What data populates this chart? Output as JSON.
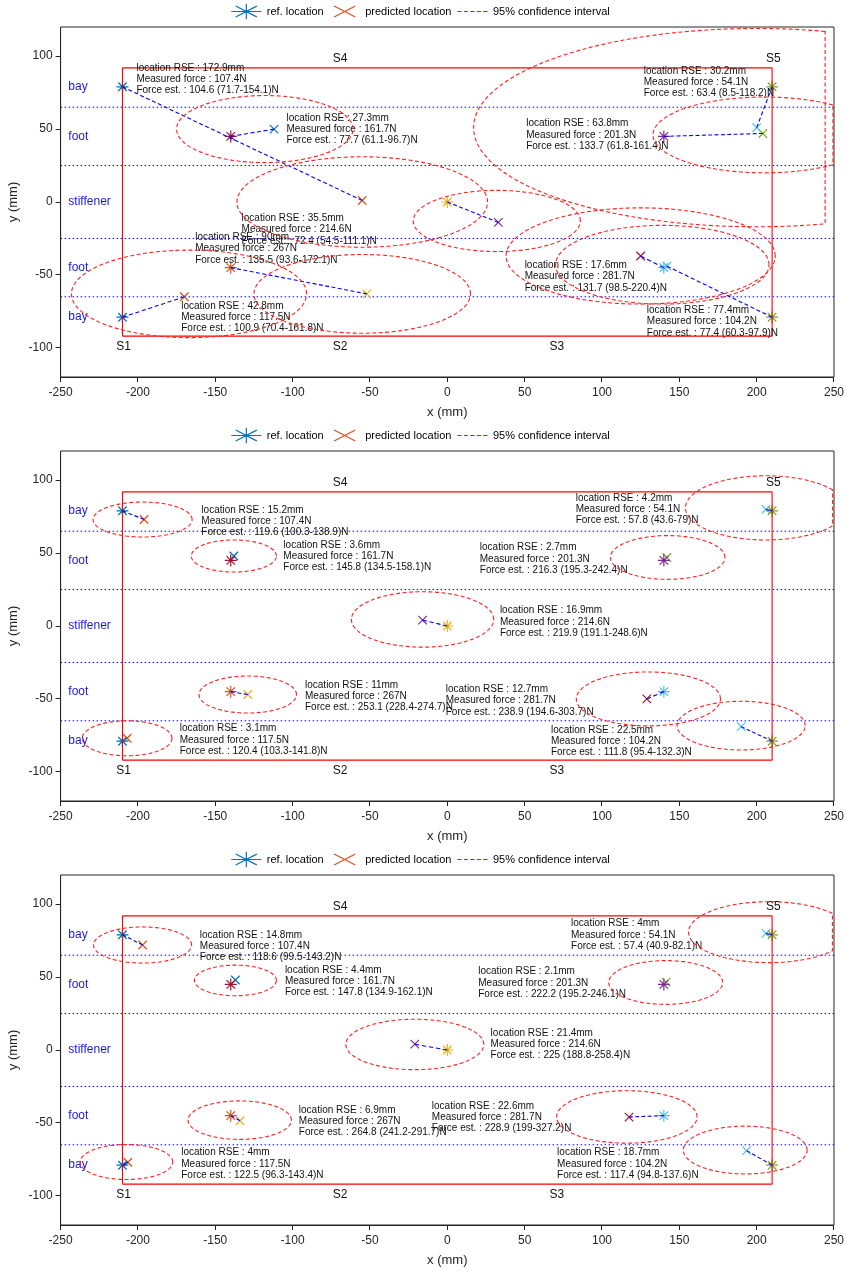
{
  "chart_data": [
    {
      "type": "scatter",
      "xlabel": "x (mm)",
      "ylabel": "y (mm)",
      "xlim": [
        -250,
        250
      ],
      "ylim": [
        -120,
        120
      ],
      "xticks": [
        -250,
        -200,
        -150,
        -100,
        -50,
        0,
        50,
        100,
        150,
        200,
        250
      ],
      "yticks": [
        -100,
        -50,
        0,
        50,
        100
      ],
      "legend": "top",
      "series": [
        {
          "type": "scatter",
          "name": "ref. location",
          "color": "#0072bd",
          "colors": [
            "#0072bd",
            "#a2142f",
            "#d95319",
            "#0072bd",
            "#edb120",
            "#7e2f8e",
            "#77ac30",
            "#4dbeee",
            "#77ac30"
          ],
          "x": [
            -210,
            -140,
            -140,
            -210,
            0,
            140,
            210,
            140,
            210
          ],
          "values": [
            79,
            45,
            -45,
            -79,
            0,
            45,
            79,
            -45,
            -79
          ]
        },
        {
          "type": "scatter",
          "name": "predicted location",
          "color": "#d95319",
          "marker": "cross",
          "colors": [
            "#d95319",
            "#0072bd",
            "#edb120",
            "#d95319",
            "#7e2f8e",
            "#77ac30",
            "#4dbeee",
            "#a2142f",
            "#4dbeee"
          ],
          "x": [
            -55,
            -112,
            -52,
            -170,
            33,
            204,
            200,
            125,
            142
          ],
          "values": [
            1,
            50,
            -63,
            -65,
            -14,
            47,
            51,
            -37,
            -44
          ]
        },
        {
          "type": "line",
          "name": "95% confidence interval",
          "color": "#ff0000",
          "line_style": "dashed",
          "marker": "none"
        },
        {
          "type": "line",
          "color": "#0000ff",
          "line_style": "dashed",
          "marker": "none",
          "x": [
            -210,
            -55
          ],
          "values": [
            79,
            1
          ]
        },
        {
          "type": "line",
          "color": "#0000ff",
          "line_style": "dashed",
          "marker": "none",
          "x": [
            -140,
            -112
          ],
          "values": [
            45,
            50
          ]
        },
        {
          "type": "line",
          "color": "#0000ff",
          "line_style": "dashed",
          "marker": "none",
          "x": [
            -140,
            -52
          ],
          "values": [
            -45,
            -63
          ]
        },
        {
          "type": "line",
          "color": "#0000ff",
          "line_style": "dashed",
          "marker": "none",
          "x": [
            -210,
            -170
          ],
          "values": [
            -79,
            -65
          ]
        },
        {
          "type": "line",
          "color": "#0000ff",
          "line_style": "dashed",
          "marker": "none",
          "x": [
            0,
            33
          ],
          "values": [
            0,
            -14
          ]
        },
        {
          "type": "line",
          "color": "#0000ff",
          "line_style": "dashed",
          "marker": "none",
          "x": [
            140,
            204
          ],
          "values": [
            45,
            47
          ]
        },
        {
          "type": "line",
          "color": "#0000ff",
          "line_style": "dashed",
          "marker": "none",
          "x": [
            200,
            210
          ],
          "values": [
            51,
            79
          ]
        },
        {
          "type": "line",
          "color": "#0000ff",
          "line_style": "dashed",
          "marker": "none",
          "x": [
            125,
            140
          ],
          "values": [
            -37,
            -45
          ]
        },
        {
          "type": "line",
          "color": "#0000ff",
          "line_style": "dashed",
          "marker": "none",
          "x": [
            142,
            210
          ],
          "values": [
            -44,
            -79
          ]
        },
        {
          "type": "line",
          "color": "#ff0000",
          "line_style": "solid",
          "marker": "none",
          "x": [
            -210,
            210
          ],
          "values": [
            -92,
            -92
          ]
        },
        {
          "type": "line",
          "color": "#ff0000",
          "line_style": "solid",
          "marker": "none",
          "x": [
            -210,
            210
          ],
          "values": [
            92,
            92
          ]
        },
        {
          "type": "line",
          "color": "#ff0000",
          "line_style": "solid",
          "marker": "none",
          "x": [
            -210,
            -210
          ],
          "values": [
            -92,
            92
          ]
        },
        {
          "type": "line",
          "color": "#ff0000",
          "line_style": "solid",
          "marker": "none",
          "x": [
            210,
            210
          ],
          "values": [
            -92,
            92
          ]
        }
      ],
      "ref_lines": [
        {
          "axis": "y",
          "value": 65,
          "color": "#0000ff",
          "line_style": "dotted"
        },
        {
          "axis": "y",
          "value": 25,
          "color": "#0000ff",
          "line_style": "dotted"
        },
        {
          "axis": "y",
          "value": -25,
          "color": "#0000ff",
          "line_style": "dotted"
        },
        {
          "axis": "y",
          "value": -65,
          "color": "#0000ff",
          "line_style": "dotted"
        }
      ],
      "annotations": [
        "bay",
        "foot",
        "stiffener",
        "foot",
        "bay",
        "S1",
        "S2",
        "S3",
        "S4",
        "S5",
        "location RSE : 172.9mm\nMeasured force : 107.4N\nForce est. : 104.6 (71.7-154.1)N",
        "location RSE : 27.3mm\nMeasured force : 161.7N\nForce est. : 77.7 (61.1-96.7)N",
        "location RSE : 90mm\nMeasured force : 267N\nForce est. : 135.5 (93.6-172.1)N",
        "location RSE : 42.8mm\nMeasured force : 117.5N\nForce est. : 100.9 (70.4-161.8)N",
        "location RSE : 35.5mm\nMeasured force : 214.6N\nForce est. : 72.4 (54.5-111.1)N",
        "location RSE : 30.2mm\nMeasured force : 54.1N\nForce est. : 63.4 (8.5-118.2)N",
        "location RSE : 63.8mm\nMeasured force : 201.3N\nForce est. : 133.7 (61.8-161.4)N",
        "location RSE : 17.6mm\nMeasured force : 281.7N\nForce est. : 131.7 (98.5-220.4)N",
        "location RSE : 77.4mm\nMeasured force : 104.2N\nForce est. : 77.4 (60.3-97.9)N"
      ]
    },
    {
      "type": "scatter",
      "xlabel": "x (mm)",
      "ylabel": "y (mm)",
      "xlim": [
        -250,
        250
      ],
      "ylim": [
        -120,
        120
      ],
      "xticks": [
        -250,
        -200,
        -150,
        -100,
        -50,
        0,
        50,
        100,
        150,
        200,
        250
      ],
      "yticks": [
        -100,
        -50,
        0,
        50,
        100
      ],
      "legend": "top",
      "series": [
        {
          "type": "scatter",
          "name": "ref. location",
          "color": "#0072bd",
          "colors": [
            "#0072bd",
            "#a2142f",
            "#d95319",
            "#0072bd",
            "#edb120",
            "#7e2f8e",
            "#77ac30",
            "#4dbeee",
            "#77ac30"
          ],
          "x": [
            -210,
            -140,
            -140,
            -210,
            0,
            140,
            210,
            140,
            210
          ],
          "values": [
            79,
            45,
            -45,
            -79,
            0,
            45,
            79,
            -45,
            -79
          ]
        },
        {
          "type": "scatter",
          "name": "predicted location",
          "color": "#d95319",
          "marker": "cross",
          "colors": [
            "#d95319",
            "#0072bd",
            "#edb120",
            "#d95319",
            "#7e2f8e",
            "#77ac30",
            "#4dbeee",
            "#a2142f",
            "#4dbeee"
          ],
          "x": [
            -196,
            -138,
            -129,
            -207,
            -16,
            142,
            206,
            129,
            190
          ],
          "values": [
            73,
            48,
            -47,
            -77,
            4,
            47,
            80,
            -50,
            -69
          ]
        },
        {
          "type": "line",
          "name": "95% confidence interval",
          "color": "#ff0000",
          "line_style": "dashed",
          "marker": "none"
        },
        {
          "type": "line",
          "color": "#0000ff",
          "line_style": "dashed",
          "marker": "none",
          "x": [
            -210,
            -196
          ],
          "values": [
            79,
            73
          ]
        },
        {
          "type": "line",
          "color": "#0000ff",
          "line_style": "dashed",
          "marker": "none",
          "x": [
            -140,
            -129
          ],
          "values": [
            -45,
            -47
          ]
        },
        {
          "type": "line",
          "color": "#0000ff",
          "line_style": "dashed",
          "marker": "none",
          "x": [
            0,
            -16
          ],
          "values": [
            0,
            4
          ]
        },
        {
          "type": "line",
          "color": "#0000ff",
          "line_style": "dashed",
          "marker": "none",
          "x": [
            210,
            206
          ],
          "values": [
            79,
            80
          ]
        },
        {
          "type": "line",
          "color": "#0000ff",
          "line_style": "dashed",
          "marker": "none",
          "x": [
            140,
            129
          ],
          "values": [
            -45,
            -50
          ]
        },
        {
          "type": "line",
          "color": "#0000ff",
          "line_style": "dashed",
          "marker": "none",
          "x": [
            210,
            190
          ],
          "values": [
            -79,
            -69
          ]
        },
        {
          "type": "line",
          "color": "#ff0000",
          "line_style": "solid",
          "marker": "none",
          "x": [
            -210,
            210
          ],
          "values": [
            -92,
            -92
          ]
        },
        {
          "type": "line",
          "color": "#ff0000",
          "line_style": "solid",
          "marker": "none",
          "x": [
            -210,
            210
          ],
          "values": [
            92,
            92
          ]
        },
        {
          "type": "line",
          "color": "#ff0000",
          "line_style": "solid",
          "marker": "none",
          "x": [
            -210,
            -210
          ],
          "values": [
            -92,
            92
          ]
        },
        {
          "type": "line",
          "color": "#ff0000",
          "line_style": "solid",
          "marker": "none",
          "x": [
            210,
            210
          ],
          "values": [
            -92,
            92
          ]
        }
      ],
      "ref_lines": [
        {
          "axis": "y",
          "value": 65,
          "color": "#0000ff",
          "line_style": "dotted"
        },
        {
          "axis": "y",
          "value": 25,
          "color": "#0000ff",
          "line_style": "dotted"
        },
        {
          "axis": "y",
          "value": -25,
          "color": "#0000ff",
          "line_style": "dotted"
        },
        {
          "axis": "y",
          "value": -65,
          "color": "#0000ff",
          "line_style": "dotted"
        }
      ],
      "annotations": [
        "bay",
        "foot",
        "stiffener",
        "foot",
        "bay",
        "S1",
        "S2",
        "S3",
        "S4",
        "S5",
        "location RSE : 15.2mm\nMeasured force : 107.4N\nForce est. : 119.6 (100.3-138.9)N",
        "location RSE : 3.6mm\nMeasured force : 161.7N\nForce est. : 145.8 (134.5-158.1)N",
        "location RSE : 11mm\nMeasured force : 267N\nForce est. : 253.1 (228.4-274.7)N",
        "location RSE : 3.1mm\nMeasured force : 117.5N\nForce est. : 120.4 (103.3-141.8)N",
        "location RSE : 16.9mm\nMeasured force : 214.6N\nForce est. : 219.9 (191.1-248.6)N",
        "location RSE : 2.7mm\nMeasured force : 201.3N\nForce est. : 216.3 (195.3-242.4)N",
        "location RSE : 4.2mm\nMeasured force : 54.1N\nForce est. : 57.8 (43.6-79)N",
        "location RSE : 12.7mm\nMeasured force : 281.7N\nForce est. : 238.9 (194.6-303.7)N",
        "location RSE : 22.5mm\nMeasured force : 104.2N\nForce est. : 111.8 (95.4-132.3)N"
      ]
    },
    {
      "type": "scatter",
      "xlabel": "x (mm)",
      "ylabel": "y (mm)",
      "xlim": [
        -250,
        250
      ],
      "ylim": [
        -120,
        120
      ],
      "xticks": [
        -250,
        -200,
        -150,
        -100,
        -50,
        0,
        50,
        100,
        150,
        200,
        250
      ],
      "yticks": [
        -100,
        -50,
        0,
        50,
        100
      ],
      "legend": "top",
      "series": [
        {
          "type": "scatter",
          "name": "ref. location",
          "color": "#0072bd",
          "colors": [
            "#0072bd",
            "#a2142f",
            "#d95319",
            "#0072bd",
            "#edb120",
            "#7e2f8e",
            "#77ac30",
            "#4dbeee",
            "#77ac30"
          ],
          "x": [
            -210,
            -140,
            -140,
            -210,
            0,
            140,
            210,
            140,
            210
          ],
          "values": [
            79,
            45,
            -45,
            -79,
            0,
            45,
            79,
            -45,
            -79
          ]
        },
        {
          "type": "scatter",
          "name": "predicted location",
          "color": "#d95319",
          "marker": "cross",
          "colors": [
            "#d95319",
            "#0072bd",
            "#edb120",
            "#d95319",
            "#7e2f8e",
            "#77ac30",
            "#4dbeee",
            "#a2142f",
            "#4dbeee"
          ],
          "x": [
            -197,
            -137,
            -134,
            -206.5,
            -21,
            141.5,
            206,
            117.5,
            193.5
          ],
          "values": [
            72,
            48,
            -48.5,
            -77,
            4,
            46.5,
            80,
            -46,
            -69
          ]
        },
        {
          "type": "line",
          "name": "95% confidence interval",
          "color": "#ff0000",
          "line_style": "dashed",
          "marker": "none"
        },
        {
          "type": "line",
          "color": "#0000ff",
          "line_style": "dashed",
          "marker": "none",
          "x": [
            -210,
            -197
          ],
          "values": [
            79,
            72
          ]
        },
        {
          "type": "line",
          "color": "#0000ff",
          "line_style": "dashed",
          "marker": "none",
          "x": [
            -140,
            -134
          ],
          "values": [
            -45,
            -48.5
          ]
        },
        {
          "type": "line",
          "color": "#0000ff",
          "line_style": "dashed",
          "marker": "none",
          "x": [
            -210,
            -206.5
          ],
          "values": [
            -79,
            -77
          ]
        },
        {
          "type": "line",
          "color": "#0000ff",
          "line_style": "dashed",
          "marker": "none",
          "x": [
            0,
            -21
          ],
          "values": [
            0,
            4
          ]
        },
        {
          "type": "line",
          "color": "#0000ff",
          "line_style": "dashed",
          "marker": "none",
          "x": [
            210,
            206
          ],
          "values": [
            79,
            80
          ]
        },
        {
          "type": "line",
          "color": "#0000ff",
          "line_style": "dashed",
          "marker": "none",
          "x": [
            140,
            117.5
          ],
          "values": [
            -45,
            -46
          ]
        },
        {
          "type": "line",
          "color": "#0000ff",
          "line_style": "dashed",
          "marker": "none",
          "x": [
            210,
            193.5
          ],
          "values": [
            -79,
            -69
          ]
        },
        {
          "type": "line",
          "color": "#ff0000",
          "line_style": "solid",
          "marker": "none",
          "x": [
            -210,
            210
          ],
          "values": [
            -92,
            -92
          ]
        },
        {
          "type": "line",
          "color": "#ff0000",
          "line_style": "solid",
          "marker": "none",
          "x": [
            -210,
            210
          ],
          "values": [
            92,
            92
          ]
        },
        {
          "type": "line",
          "color": "#ff0000",
          "line_style": "solid",
          "marker": "none",
          "x": [
            -210,
            -210
          ],
          "values": [
            -92,
            92
          ]
        },
        {
          "type": "line",
          "color": "#ff0000",
          "line_style": "solid",
          "marker": "none",
          "x": [
            210,
            210
          ],
          "values": [
            -92,
            92
          ]
        }
      ],
      "ref_lines": [
        {
          "axis": "y",
          "value": 65,
          "color": "#0000ff",
          "line_style": "dotted"
        },
        {
          "axis": "y",
          "value": 25,
          "color": "#0000ff",
          "line_style": "dotted"
        },
        {
          "axis": "y",
          "value": -25,
          "color": "#0000ff",
          "line_style": "dotted"
        },
        {
          "axis": "y",
          "value": -65,
          "color": "#0000ff",
          "line_style": "dotted"
        }
      ],
      "annotations": [
        "bay",
        "foot",
        "stiffener",
        "foot",
        "bay",
        "S1",
        "S2",
        "S3",
        "S4",
        "S5",
        "location RSE : 14.8mm\nMeasured force : 107.4N\nForce est. : 118.6 (99.5-143.2)N",
        "location RSE : 4.4mm\nMeasured force : 161.7N\nForce est. : 147.8 (134.9-162.1)N",
        "location RSE : 6.9mm\nMeasured force : 267N\nForce est. : 264.8 (241.2-291.7)N",
        "location RSE : 4mm\nMeasured force : 117.5N\nForce est. : 122.5 (96.3-143.4)N",
        "location RSE : 21.4mm\nMeasured force : 214.6N\nForce est. : 225 (188.8-258.4)N",
        "location RSE : 2.1mm\nMeasured force : 201.3N\nForce est. : 222.2 (195.2-246.1)N",
        "location RSE : 4mm\nMeasured force : 54.1N\nForce est. : 57.4 (40.9-82.1)N",
        "location RSE : 22.6mm\nMeasured force : 281.7N\nForce est. : 228.9 (199-327.2)N",
        "location RSE : 18.7mm\nMeasured force : 104.2N\nForce est. : 117.4 (94.8-137.6)N"
      ]
    }
  ]
}
